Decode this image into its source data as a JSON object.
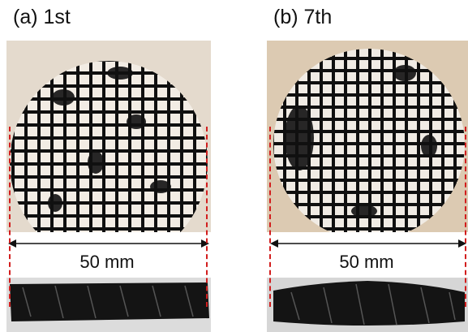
{
  "figure": {
    "panels": [
      {
        "id": "a",
        "label": "(a) 1st",
        "dimension_label": "50 mm",
        "accent_color": "#d21e1e"
      },
      {
        "id": "b",
        "label": "(b) 7th",
        "dimension_label": "50 mm",
        "accent_color": "#d21e1e"
      }
    ],
    "colors": {
      "guide_lines": "#d21e1e",
      "lattice": "#101010",
      "background_paper": "#e3d6c5"
    }
  }
}
